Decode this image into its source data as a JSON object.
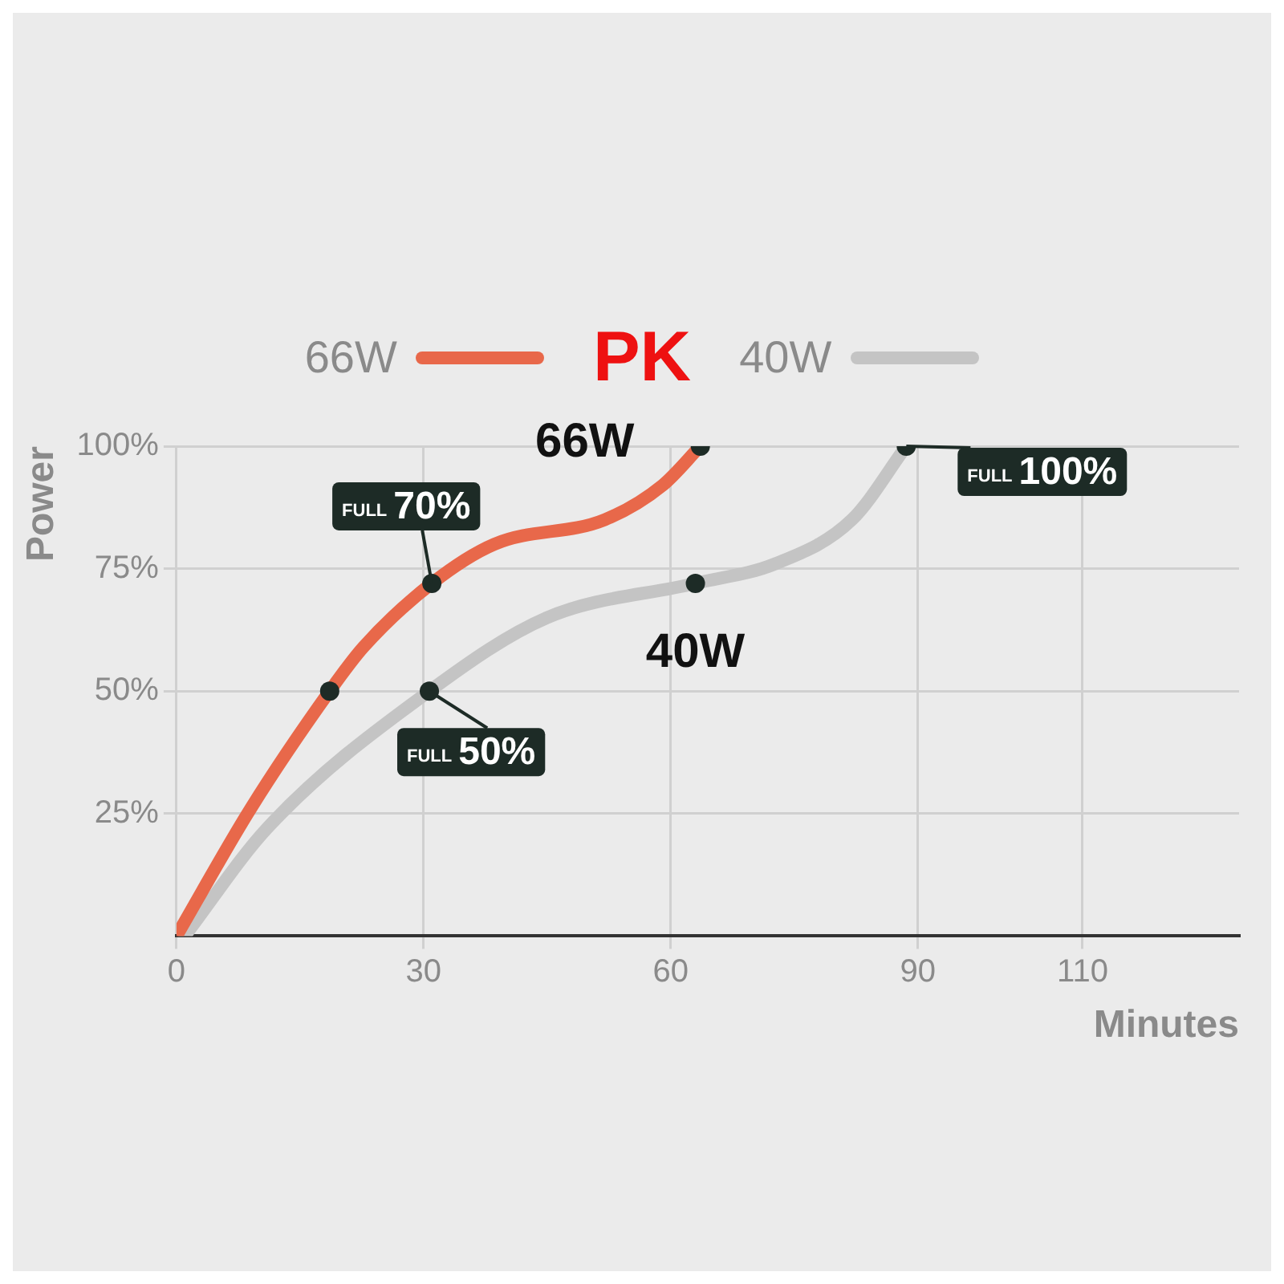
{
  "chart_data": {
    "type": "line",
    "title": "PK",
    "xlabel": "Minutes",
    "ylabel": "Power",
    "xlim": [
      0,
      129
    ],
    "xticks": [
      0,
      30,
      60,
      90,
      110
    ],
    "ylim": [
      0,
      100
    ],
    "yticks": [
      {
        "value": 25,
        "label": "25%"
      },
      {
        "value": 50,
        "label": "50%"
      },
      {
        "value": 75,
        "label": "75%"
      },
      {
        "value": 100,
        "label": "100%"
      }
    ],
    "grid": true,
    "legend": "top",
    "marker": "none",
    "series": [
      {
        "name": "66W",
        "color": "#e8684a",
        "x": [
          0,
          9,
          18.6,
          22.7,
          31,
          38.6,
          52,
          59,
          63.6
        ],
        "values": [
          0,
          26,
          50,
          59,
          72,
          80,
          85,
          92,
          100
        ]
      },
      {
        "name": "40W",
        "color": "#c4c4c4",
        "x": [
          1,
          11,
          30.7,
          45,
          63,
          72.7,
          82,
          88.6
        ],
        "values": [
          0,
          22,
          50,
          65,
          72,
          76,
          85,
          100
        ]
      },
      {
        "type": "scatter",
        "color": "#1d2b26",
        "marker": "circle",
        "x": [
          18.6,
          31,
          63.6,
          30.7,
          63,
          88.6
        ],
        "values": [
          50,
          72,
          100,
          50,
          72,
          100
        ]
      }
    ],
    "annotations": [
      {
        "text": "FULL 70%",
        "x": 31,
        "y": 72
      },
      {
        "text": "FULL 50%",
        "x": 30.7,
        "y": 50
      },
      {
        "text": "FULL 100%",
        "x": 88.6,
        "y": 100
      }
    ]
  }
}
